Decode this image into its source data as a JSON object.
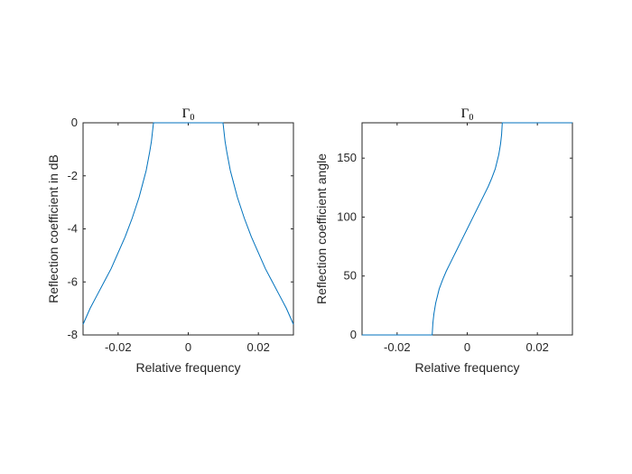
{
  "chart_data": [
    {
      "type": "line",
      "title": "Γ",
      "title_subscript": "0",
      "xlabel": "Relative frequency",
      "ylabel": "Reflection coefficient in dB",
      "xlim": [
        -0.03,
        0.03
      ],
      "ylim": [
        -8,
        0
      ],
      "xticks": [
        -0.02,
        0,
        0.02
      ],
      "xtick_labels": [
        "-0.02",
        "0",
        "0.02"
      ],
      "yticks": [
        -8,
        -6,
        -4,
        -2,
        0
      ],
      "ytick_labels": [
        "-8",
        "-6",
        "-4",
        "-2",
        "0"
      ],
      "grid": false,
      "line_color": "#0072BD",
      "series": [
        {
          "x": [
            -0.03,
            -0.028,
            -0.026,
            -0.024,
            -0.022,
            -0.02,
            -0.018,
            -0.016,
            -0.014,
            -0.013,
            -0.012,
            -0.011,
            -0.0105,
            -0.01,
            -0.0099,
            0.0099,
            0.01,
            0.0105,
            0.011,
            0.012,
            0.013,
            0.014,
            0.016,
            0.018,
            0.02,
            0.022,
            0.024,
            0.026,
            0.028,
            0.03
          ],
          "y": [
            -7.6,
            -7.0,
            -6.5,
            -6.0,
            -5.5,
            -4.9,
            -4.3,
            -3.6,
            -2.8,
            -2.3,
            -1.8,
            -1.1,
            -0.7,
            -0.1,
            0,
            0,
            -0.1,
            -0.7,
            -1.1,
            -1.8,
            -2.3,
            -2.8,
            -3.6,
            -4.3,
            -4.9,
            -5.5,
            -6.0,
            -6.5,
            -7.0,
            -7.6
          ]
        }
      ]
    },
    {
      "type": "line",
      "title": "Γ",
      "title_subscript": "0",
      "xlabel": "Relative frequency",
      "ylabel": "Reflection coefficient angle",
      "xlim": [
        -0.03,
        0.03
      ],
      "ylim": [
        0,
        180
      ],
      "xticks": [
        -0.02,
        0,
        0.02
      ],
      "xtick_labels": [
        "-0.02",
        "0",
        "0.02"
      ],
      "yticks": [
        0,
        50,
        100,
        150
      ],
      "ytick_labels": [
        "0",
        "50",
        "100",
        "150"
      ],
      "grid": false,
      "line_color": "#0072BD",
      "series": [
        {
          "x": [
            -0.03,
            -0.01,
            -0.0098,
            -0.0095,
            -0.009,
            -0.008,
            -0.007,
            -0.006,
            -0.005,
            -0.004,
            -0.003,
            -0.002,
            -0.001,
            0,
            0.001,
            0.002,
            0.003,
            0.004,
            0.005,
            0.006,
            0.007,
            0.008,
            0.009,
            0.0095,
            0.0098,
            0.01,
            0.03
          ],
          "y": [
            0,
            0,
            10,
            18,
            27,
            39,
            47,
            54,
            60,
            66,
            72,
            78,
            84,
            90,
            96,
            102,
            108,
            114,
            120,
            126,
            133,
            141,
            153,
            162,
            170,
            180,
            180
          ]
        }
      ]
    }
  ]
}
